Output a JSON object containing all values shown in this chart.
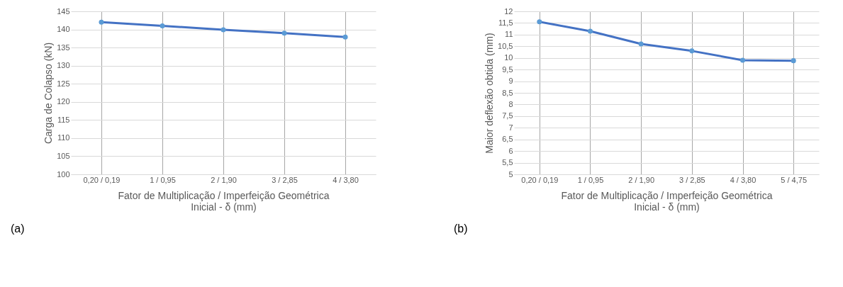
{
  "chart_data": [
    {
      "type": "line",
      "categories": [
        "0,20 / 0,19",
        "1 / 0,95",
        "2 / 1,90",
        "3 / 2,85",
        "4 / 3,80"
      ],
      "series": [
        {
          "color": "#4472c4",
          "values": [
            142,
            141,
            139.9,
            139,
            137.9
          ]
        }
      ],
      "ylabel": "Carga de Colapso (kN)",
      "xlabel": "Fator de Multiplicação / Imperfeição Geométrica\nInicial - δ (mm)",
      "ylim": [
        100,
        145
      ],
      "yticks": [
        100,
        105,
        110,
        115,
        120,
        125,
        130,
        135,
        140,
        145
      ],
      "grid": true,
      "marker": "circle",
      "annotations": [
        "(a)"
      ]
    },
    {
      "type": "line",
      "categories": [
        "0,20 / 0,19",
        "1 / 0,95",
        "2 / 1,90",
        "3 / 2,85",
        "4 / 3,80",
        "5 / 4,75"
      ],
      "series": [
        {
          "color": "#4472c4",
          "values": [
            11.55,
            11.15,
            10.6,
            10.3,
            9.9,
            9.88
          ]
        }
      ],
      "ylabel": "Maior deflexão obtida (mm)",
      "xlabel": "Fator de Multiplicação / Imperfeição Geométrica\nInicial - δ (mm)",
      "ylim": [
        5,
        12
      ],
      "yticks": [
        5,
        {
          "value": 5.5,
          "label": "5,5"
        },
        6,
        {
          "value": 6.5,
          "label": "6,5"
        },
        7,
        {
          "value": 7.5,
          "label": "7,5"
        },
        8,
        {
          "value": 8.5,
          "label": "8,5"
        },
        9,
        {
          "value": 9.5,
          "label": "9,5"
        },
        10,
        {
          "value": 10.5,
          "label": "10,5"
        },
        11,
        {
          "value": 11.5,
          "label": "11,5"
        },
        12
      ],
      "grid": true,
      "marker": "circle",
      "annotations": [
        "(b)"
      ]
    }
  ]
}
